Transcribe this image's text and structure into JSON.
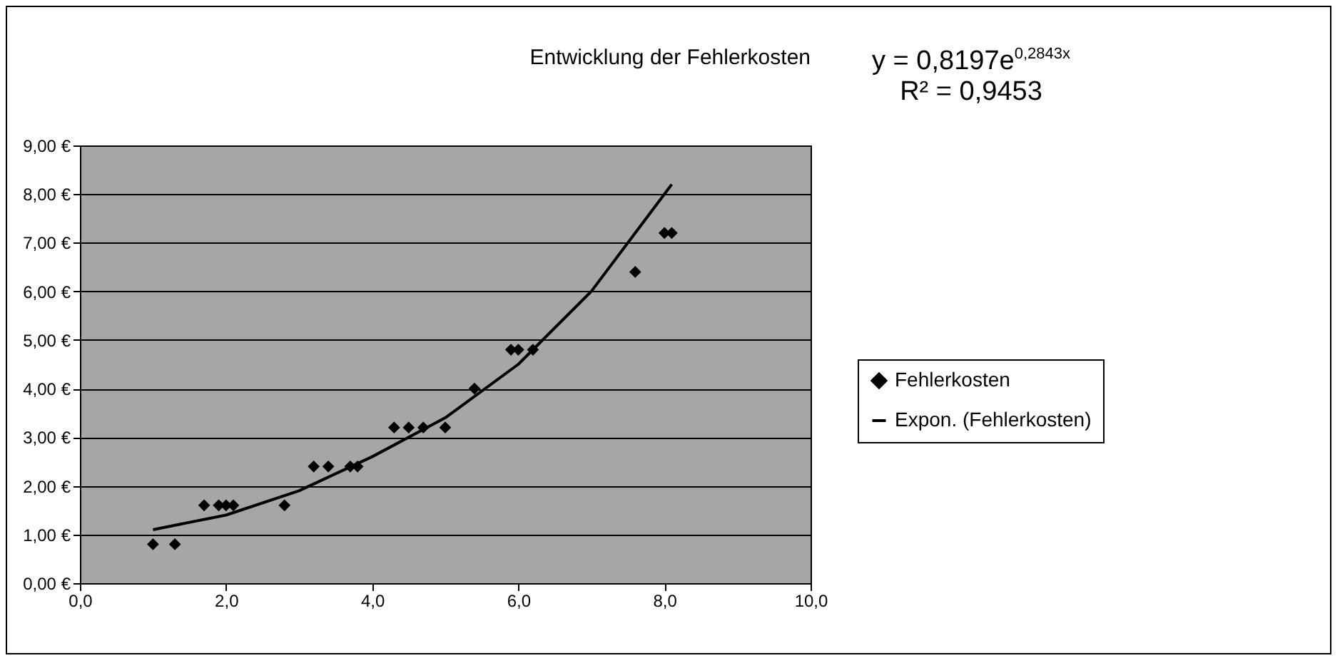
{
  "chart_data": {
    "type": "scatter",
    "title": "Entwicklung der Fehlerkosten",
    "annotations": [
      "y = 0,8197e$^{0,2843x}$",
      "R² = 0,9453"
    ],
    "series": [
      {
        "name": "Fehlerkosten",
        "marker": "diamond",
        "color": "#000000",
        "x": [
          1.0,
          1.3,
          1.7,
          1.9,
          2.0,
          2.1,
          2.8,
          3.2,
          3.4,
          3.7,
          3.8,
          4.3,
          4.5,
          4.7,
          5.0,
          5.4,
          5.9,
          6.0,
          6.2,
          7.6,
          8.0,
          8.1
        ],
        "values": [
          0.8,
          0.8,
          1.6,
          1.6,
          1.6,
          1.6,
          1.6,
          2.4,
          2.4,
          2.4,
          2.4,
          3.2,
          3.2,
          3.2,
          3.2,
          4.0,
          4.8,
          4.8,
          4.8,
          6.4,
          7.2,
          7.2
        ]
      },
      {
        "name": "Expon. (Fehlerkosten)",
        "type": "line",
        "color": "#000000",
        "x": [
          1,
          2,
          3,
          4,
          5,
          6,
          7,
          8,
          8.1
        ],
        "values": [
          1.1,
          1.4,
          1.9,
          2.6,
          3.4,
          4.5,
          6.0,
          8.0,
          8.2
        ]
      }
    ],
    "xlim": [
      0,
      10
    ],
    "xticks": [
      {
        "value": 0,
        "label": "0,0"
      },
      {
        "value": 2,
        "label": "2,0"
      },
      {
        "value": 4,
        "label": "4,0"
      },
      {
        "value": 6,
        "label": "6,0"
      },
      {
        "value": 8,
        "label": "8,0"
      },
      {
        "value": 10,
        "label": "10,0"
      }
    ],
    "ylim": [
      0,
      9
    ],
    "yticks": [
      {
        "value": 0,
        "label": "0,00 €"
      },
      {
        "value": 1,
        "label": "1,00 €"
      },
      {
        "value": 2,
        "label": "2,00 €"
      },
      {
        "value": 3,
        "label": "3,00 €"
      },
      {
        "value": 4,
        "label": "4,00 €"
      },
      {
        "value": 5,
        "label": "5,00 €"
      },
      {
        "value": 6,
        "label": "6,00 €"
      },
      {
        "value": 7,
        "label": "7,00 €"
      },
      {
        "value": 8,
        "label": "8,00 €"
      },
      {
        "value": 9,
        "label": "9,00 €"
      }
    ],
    "grid": "y",
    "legend": "right"
  }
}
